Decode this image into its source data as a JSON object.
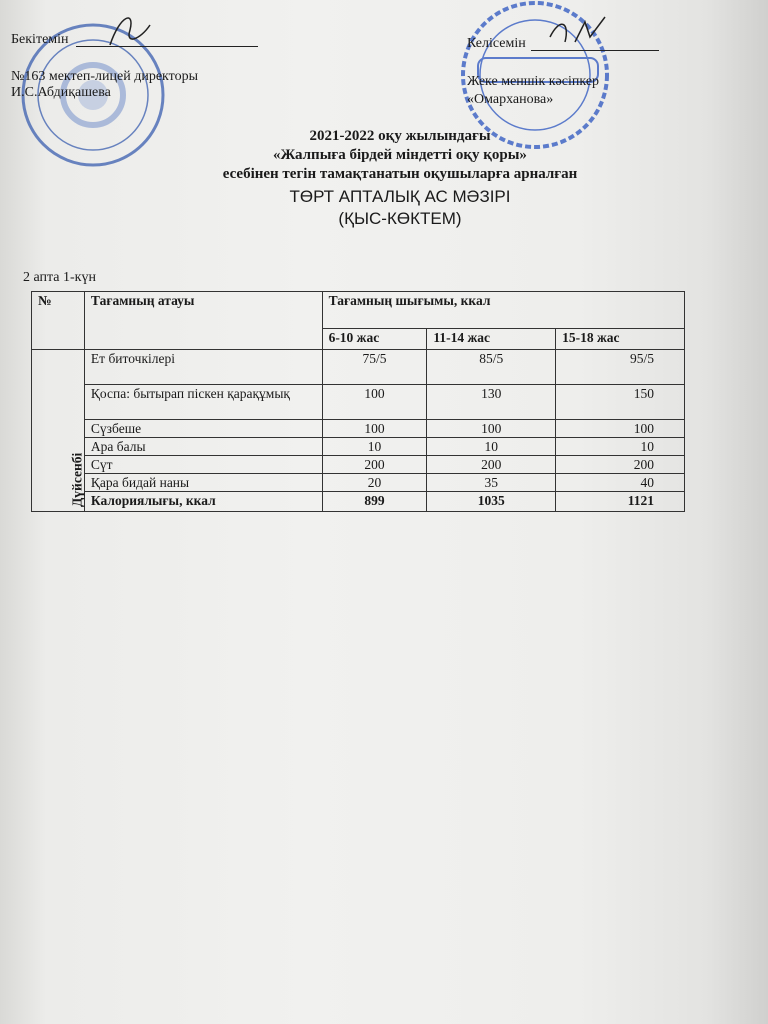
{
  "header": {
    "left": {
      "approve": "Бекітемін",
      "position": "№163 мектеп-лицей директоры",
      "name": "И.С.Абдиқашева"
    },
    "right": {
      "agree": "Келісемін",
      "position": "Жеке меншік кәсіпкер",
      "name": "«Омарханова»"
    }
  },
  "stamps": {
    "left": "№163 МЕКТЕП-ЛИЦЕЙ КОММУНАЛДЫҚ МЕМЛЕКЕТТІК МЕКЕМЕСІ",
    "right": "ИП Омарханова · Нұрғазы Ә.Ш. · 3"
  },
  "title": {
    "line1": "2021-2022 оқу жылындағы",
    "line2": "«Жалпыға бірдей міндетті оқу қоры»",
    "line3": "есебінен тегін тамақтанатын оқушыларға арналған",
    "line4": "ТӨРТ АПТАЛЫҚ АС МӘЗІРІ",
    "line5": "(ҚЫС-КӨКТЕМ)"
  },
  "day_label": "2 апта 1-күн",
  "table": {
    "col_no": "№",
    "col_name": "Тағамның атауы",
    "col_output": "Тағамның шығымы, ккал",
    "age_groups": [
      "6-10 жас",
      "11-14 жас",
      "15-18 жас"
    ],
    "day": "Дүйсенбі",
    "rows": [
      {
        "name": "Ет биточкілері",
        "values": [
          "75/5",
          "85/5",
          "95/5"
        ]
      },
      {
        "name": "Қоспа:  бытырап піскен қарақұмық",
        "values": [
          "100",
          "130",
          "150"
        ]
      },
      {
        "name": "Сүзбеше",
        "values": [
          "100",
          "100",
          "100"
        ]
      },
      {
        "name": "Ара балы",
        "values": [
          "10",
          "10",
          "10"
        ]
      },
      {
        "name": "Сүт",
        "values": [
          "200",
          "200",
          "200"
        ]
      },
      {
        "name": "Қара бидай наны",
        "values": [
          "20",
          "35",
          "40"
        ]
      }
    ],
    "total": {
      "name": "Калориялығы, ккал",
      "values": [
        "899",
        "1035",
        "1121"
      ]
    }
  }
}
